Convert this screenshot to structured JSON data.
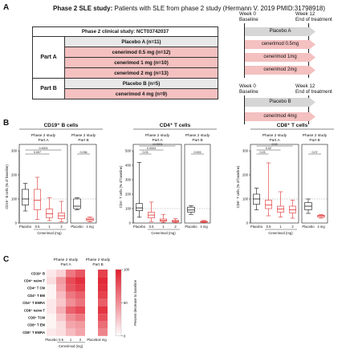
{
  "panel_a": {
    "letter": "A",
    "title_bold": "Phase 2 SLE study:",
    "title_rest": "Patients with SLE from phase 2 study (Hermann V. 2019 PMID:31798918)",
    "table": {
      "header": "Phase 2 clinical study: NCT03742037",
      "part_a": {
        "label": "Part A",
        "rows": [
          "Placebo A (n=11)",
          "cenerimod 0.5 mg (n=12)",
          "cenerimod 1 mg (n=10)",
          "cenerimod 2 mg (n=13)"
        ]
      },
      "part_b": {
        "label": "Part B",
        "rows": [
          "Placebo B (n=5)",
          "cenerimod 4 mg (n=9)"
        ]
      }
    },
    "timeline_a": {
      "week0_line1": "Week 0",
      "week0_line2": "Baseline",
      "week12_line1": "Week 12",
      "week12_line2": "End of treatment",
      "bars": [
        "Placebo A",
        "cenerimod 0.5mg",
        "cenerimod 1mg",
        "cenerimod 2mg"
      ]
    },
    "timeline_b": {
      "week0_line1": "Week 0",
      "week0_line2": "Baseline",
      "week12_line1": "Week 12",
      "week12_line2": "End of treatment",
      "bars": [
        "Placebo B",
        "cenerimod 4mg"
      ]
    }
  },
  "panel_b": {
    "letter": "B",
    "plots": [
      {
        "title": "CD19⁺ B cells",
        "ylabel": "CD19⁺ B cells (% of baseline)",
        "yticks": [
          "0",
          "100",
          "200",
          "300"
        ],
        "ymax": 300,
        "part_a_header": [
          "Phase 2 study",
          "Part A"
        ],
        "part_b_header": [
          "Phase 2 study",
          "Part B"
        ],
        "part_a_pvals": [
          "0.0003",
          "0.007"
        ],
        "part_b_pvals": [
          "0.036"
        ],
        "part_a_boxes": [
          {
            "group": "Placebo",
            "color": "black",
            "min": 50,
            "q1": 75,
            "median": 100,
            "q3": 140,
            "max": 165
          },
          {
            "group": "0.5",
            "color": "red",
            "min": 15,
            "q1": 55,
            "median": 95,
            "q3": 140,
            "max": 190
          },
          {
            "group": "1",
            "color": "red",
            "min": 10,
            "q1": 22,
            "median": 38,
            "q3": 58,
            "max": 105
          },
          {
            "group": "2",
            "color": "red",
            "min": 5,
            "q1": 18,
            "median": 30,
            "q3": 42,
            "max": 90
          }
        ],
        "part_b_boxes": [
          {
            "group": "Placebo",
            "color": "black",
            "min": 55,
            "q1": 60,
            "median": 70,
            "q3": 100,
            "max": 105
          },
          {
            "group": "4 mg",
            "color": "red",
            "min": 5,
            "q1": 10,
            "median": 15,
            "q3": 20,
            "max": 25
          }
        ]
      },
      {
        "title": "CD4⁺ T cells",
        "ylabel": "CD4⁺ T cells (% of baseline)",
        "yticks": [
          "0",
          "100",
          "200",
          "300",
          "400",
          "500"
        ],
        "ymax": 500,
        "part_a_header": [
          "Phase 2 study",
          "Part A"
        ],
        "part_b_header": [
          "Phase 2 study",
          "Part B"
        ],
        "part_a_pvals": [
          "<0.0001",
          "0.0004",
          "0.03"
        ],
        "part_b_pvals": [
          "0.003"
        ],
        "part_a_boxes": [
          {
            "group": "Placebo",
            "color": "black",
            "min": 40,
            "q1": 85,
            "median": 105,
            "q3": 135,
            "max": 420
          },
          {
            "group": "0.5",
            "color": "red",
            "min": 10,
            "q1": 35,
            "median": 55,
            "q3": 75,
            "max": 145
          },
          {
            "group": "1",
            "color": "red",
            "min": 5,
            "q1": 12,
            "median": 18,
            "q3": 28,
            "max": 60
          },
          {
            "group": "2",
            "color": "red",
            "min": 3,
            "q1": 8,
            "median": 12,
            "q3": 18,
            "max": 30
          }
        ],
        "part_b_boxes": [
          {
            "group": "Placebo",
            "color": "black",
            "min": 60,
            "q1": 75,
            "median": 90,
            "q3": 110,
            "max": 120
          },
          {
            "group": "4 mg",
            "color": "red",
            "min": 3,
            "q1": 6,
            "median": 9,
            "q3": 12,
            "max": 18
          }
        ]
      },
      {
        "title": "CD8⁺ T cells",
        "ylabel": "CD8⁺ T cells (% of baseline)",
        "yticks": [
          "0",
          "100",
          "200",
          "300"
        ],
        "ymax": 300,
        "part_a_header": [
          "Phase 2 study",
          "Part A"
        ],
        "part_b_header": [
          "Phase 2 study",
          "Part B"
        ],
        "part_a_pvals": [
          "0.03",
          "0.02",
          "0.03"
        ],
        "part_b_pvals": [
          "0.07"
        ],
        "part_a_boxes": [
          {
            "group": "Placebo",
            "color": "black",
            "min": 55,
            "q1": 78,
            "median": 100,
            "q3": 120,
            "max": 145
          },
          {
            "group": "0.5",
            "color": "red",
            "min": 30,
            "q1": 60,
            "median": 75,
            "q3": 95,
            "max": 250
          },
          {
            "group": "1",
            "color": "red",
            "min": 25,
            "q1": 45,
            "median": 58,
            "q3": 70,
            "max": 130
          },
          {
            "group": "2",
            "color": "red",
            "min": 20,
            "q1": 42,
            "median": 55,
            "q3": 70,
            "max": 95
          }
        ],
        "part_b_boxes": [
          {
            "group": "Placebo",
            "color": "black",
            "min": 40,
            "q1": 55,
            "median": 70,
            "q3": 85,
            "max": 100
          },
          {
            "group": "4 mg",
            "color": "red",
            "min": 20,
            "q1": 25,
            "median": 30,
            "q3": 32,
            "max": 35
          }
        ]
      }
    ],
    "xlabel_a_ticks": [
      "Placebo",
      "0.5",
      "1",
      "2"
    ],
    "xlabel_a_group": "Cenerimod (mg)",
    "xlabel_b_ticks": [
      "Placebo",
      "4 mg"
    ]
  },
  "panel_c": {
    "letter": "C",
    "part_a_header": [
      "Phase 2 study",
      "Part A"
    ],
    "part_b_header": [
      "Phase 2 study",
      "Part B"
    ],
    "rows": [
      "CD19⁺ B",
      "CD4⁺ naive T",
      "CD4⁺ T CM",
      "CD4⁺ T EM",
      "CD4⁺ T EMRA",
      "CD8⁺ naive T",
      "CD8⁺ TCM",
      "CD8⁺ T EM",
      "CD8⁺ T EMRA"
    ],
    "x_ticks_a": [
      "Placebo",
      "0.5",
      "1",
      "2"
    ],
    "x_ticks_b": [
      "Placebo",
      "4 mg"
    ],
    "xlabel": "Cenerimod (mg)",
    "colorbar_label": "Percent decrease to baseline",
    "colorbar_ticks": [
      "0",
      "50",
      "100"
    ],
    "values_a": [
      [
        10,
        20,
        60,
        75
      ],
      [
        15,
        45,
        80,
        92
      ],
      [
        5,
        40,
        75,
        85
      ],
      [
        5,
        30,
        60,
        70
      ],
      [
        10,
        25,
        50,
        62
      ],
      [
        10,
        35,
        70,
        80
      ],
      [
        5,
        25,
        50,
        60
      ],
      [
        5,
        15,
        40,
        45
      ],
      [
        10,
        15,
        30,
        40
      ]
    ],
    "values_b": [
      [
        0,
        85
      ],
      [
        0,
        95
      ],
      [
        0,
        92
      ],
      [
        0,
        85
      ],
      [
        0,
        72
      ],
      [
        0,
        90
      ],
      [
        0,
        78
      ],
      [
        0,
        65
      ],
      [
        0,
        55
      ]
    ]
  }
}
